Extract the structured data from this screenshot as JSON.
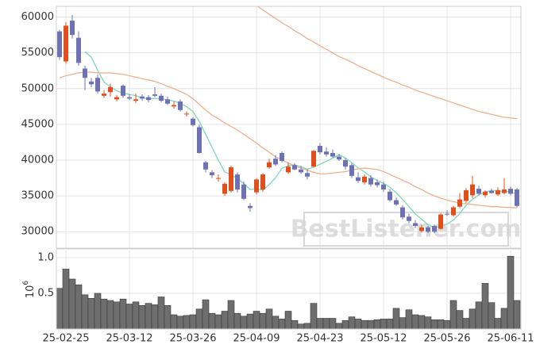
{
  "chart_data": [
    {
      "type": "candlestick",
      "ylim": [
        27700,
        61500
      ],
      "yticks": [
        30000,
        35000,
        40000,
        45000,
        50000,
        55000,
        60000
      ],
      "grid": true,
      "up_color": "#e0501c",
      "down_color": "#6e72b3",
      "watermark": "BestListener.com",
      "open": [
        58000,
        53800,
        59500,
        57100,
        52800,
        51000,
        51500,
        49000,
        49500,
        48500,
        50400,
        48800,
        48300,
        48900,
        48800,
        49200,
        49000,
        48500,
        47500,
        48200,
        46400,
        45800,
        44600,
        39700,
        38300,
        37400,
        35300,
        35700,
        38000,
        36600,
        33600,
        35500,
        35900,
        39000,
        40200,
        41000,
        38300,
        39300,
        38700,
        38200,
        39100,
        42000,
        41200,
        41000,
        40500,
        40000,
        39300,
        37600,
        36900,
        37500,
        36900,
        36600,
        35600,
        34400,
        33400,
        32100,
        31200,
        30100,
        30600,
        30800,
        30400,
        32500,
        32300,
        33500,
        34300,
        35100,
        36000,
        35100,
        35700,
        35200,
        35400,
        36000,
        35900
      ],
      "high": [
        58200,
        59300,
        60300,
        58000,
        53200,
        51500,
        52000,
        49800,
        50700,
        49100,
        50600,
        49200,
        49300,
        49200,
        49100,
        50200,
        49300,
        48900,
        48200,
        48500,
        46800,
        46000,
        45000,
        39900,
        38600,
        38000,
        36900,
        39200,
        38300,
        37000,
        34000,
        37500,
        38200,
        40200,
        40700,
        41200,
        39700,
        39600,
        39200,
        38700,
        41400,
        42400,
        41800,
        41500,
        40900,
        40300,
        39600,
        38300,
        38000,
        37900,
        37300,
        37000,
        35900,
        34800,
        33700,
        32500,
        31600,
        31000,
        30800,
        31000,
        32600,
        33000,
        33600,
        35400,
        36100,
        37800,
        36400,
        35800,
        36000,
        36200,
        37500,
        36300,
        36100
      ],
      "low": [
        54000,
        53500,
        57000,
        53200,
        49800,
        50200,
        49300,
        48700,
        48900,
        48200,
        48700,
        48400,
        48000,
        48300,
        48100,
        48800,
        48100,
        47700,
        47200,
        46800,
        46100,
        44700,
        40900,
        38300,
        37500,
        37000,
        35000,
        35500,
        35500,
        34400,
        32800,
        35200,
        35600,
        38800,
        39200,
        39700,
        38100,
        38600,
        38100,
        37300,
        39000,
        40800,
        40500,
        40300,
        39900,
        38700,
        37500,
        36800,
        36600,
        36300,
        36200,
        35600,
        34200,
        33600,
        31700,
        31200,
        30500,
        29900,
        29800,
        29800,
        30300,
        32200,
        32100,
        33300,
        34000,
        34700,
        35100,
        34800,
        35300,
        35000,
        35200,
        35100,
        33400
      ],
      "close": [
        54400,
        58800,
        57500,
        53600,
        51500,
        50600,
        49600,
        49300,
        50200,
        48800,
        49000,
        48600,
        48500,
        48600,
        48400,
        49000,
        48300,
        47900,
        47700,
        47000,
        46500,
        44900,
        41000,
        38700,
        37900,
        37500,
        36700,
        39000,
        35900,
        34600,
        33300,
        37300,
        38000,
        39700,
        39400,
        39900,
        39100,
        38700,
        38300,
        37700,
        41300,
        41100,
        40800,
        40500,
        40100,
        39100,
        37800,
        37100,
        37700,
        36600,
        36500,
        35900,
        34400,
        33800,
        32000,
        31500,
        30800,
        30600,
        30000,
        30000,
        32400,
        32400,
        33400,
        34500,
        35800,
        36600,
        35300,
        35600,
        35400,
        35800,
        35900,
        35300,
        33600
      ],
      "lines": [
        {
          "color": "#7fd8b8",
          "values": [
            null,
            null,
            null,
            null,
            55160,
            54400,
            52560,
            50920,
            50240,
            49700,
            49380,
            49180,
            49020,
            48700,
            48620,
            48620,
            48560,
            48440,
            48260,
            47980,
            47480,
            46800,
            45420,
            43620,
            41800,
            40000,
            38360,
            37960,
            37400,
            36740,
            35900,
            36020,
            35820,
            36580,
            37540,
            38860,
            39220,
            39360,
            39080,
            38740,
            39020,
            39420,
            39840,
            40280,
            40760,
            40320,
            39660,
            38920,
            38360,
            37660,
            37140,
            36760,
            36220,
            35440,
            34520,
            33520,
            32500,
            31740,
            30980,
            30580,
            30760,
            31080,
            31640,
            32540,
            33700,
            34540,
            35120,
            35560,
            35740,
            35740,
            35600,
            35600,
            35200
          ]
        },
        {
          "color": "#eeb08e",
          "values": [
            51500,
            51800,
            52000,
            52200,
            52300,
            52300,
            52200,
            52200,
            52200,
            52100,
            52000,
            51800,
            51600,
            51400,
            51200,
            51000,
            50700,
            50300,
            50000,
            49600,
            49200,
            48600,
            47800,
            47000,
            46300,
            45800,
            45200,
            44700,
            44200,
            43600,
            43000,
            42400,
            41700,
            41100,
            40500,
            40000,
            39600,
            39200,
            38900,
            38600,
            38300,
            38100,
            38100,
            38200,
            38300,
            38400,
            38600,
            38800,
            38900,
            38800,
            38700,
            38400,
            38000,
            37600,
            37200,
            36800,
            36300,
            35900,
            35400,
            35000,
            34700,
            34400,
            34200,
            34000,
            33900,
            33800,
            33700,
            33600,
            33500,
            33500,
            33400,
            33400,
            33300
          ]
        },
        {
          "color": "#eeb08e",
          "values": [
            null,
            null,
            null,
            null,
            null,
            null,
            null,
            null,
            null,
            null,
            null,
            null,
            null,
            null,
            null,
            null,
            null,
            null,
            null,
            null,
            null,
            null,
            null,
            null,
            null,
            null,
            null,
            null,
            null,
            null,
            62200,
            61600,
            61000,
            60400,
            59800,
            59200,
            58700,
            58100,
            57600,
            57000,
            56500,
            56000,
            55500,
            55000,
            54500,
            54100,
            53700,
            53200,
            52800,
            52400,
            52000,
            51600,
            51200,
            50900,
            50500,
            50200,
            49800,
            49500,
            49200,
            48900,
            48600,
            48300,
            48000,
            47700,
            47400,
            47100,
            46800,
            46600,
            46400,
            46200,
            46000,
            45900,
            45800
          ]
        }
      ]
    },
    {
      "type": "bar",
      "ylabel": "10",
      "ylabel_exponent": "6",
      "ylim": [
        0,
        1.1
      ],
      "yticks": [
        0.5,
        {
          "value": 1,
          "label": "1.0"
        }
      ],
      "grid": true,
      "color": "#6e6e6e",
      "categories": [
        null,
        "25-02-25",
        null,
        null,
        null,
        null,
        null,
        null,
        null,
        null,
        null,
        "25-03-12",
        null,
        null,
        null,
        null,
        null,
        null,
        null,
        null,
        null,
        "25-03-26",
        null,
        null,
        null,
        null,
        null,
        null,
        null,
        null,
        null,
        "25-04-09",
        null,
        null,
        null,
        null,
        null,
        null,
        null,
        null,
        null,
        "25-04-23",
        null,
        null,
        null,
        null,
        null,
        null,
        null,
        null,
        null,
        "25-05-12",
        null,
        null,
        null,
        null,
        null,
        null,
        null,
        null,
        null,
        "25-05-26",
        null,
        null,
        null,
        null,
        null,
        null,
        null,
        null,
        null,
        "25-06-11",
        null
      ],
      "values": [
        0.57,
        0.84,
        0.7,
        0.62,
        0.48,
        0.43,
        0.5,
        0.42,
        0.4,
        0.38,
        0.42,
        0.35,
        0.38,
        0.33,
        0.36,
        0.34,
        0.45,
        0.33,
        0.2,
        0.18,
        0.19,
        0.2,
        0.28,
        0.41,
        0.22,
        0.2,
        0.25,
        0.4,
        0.22,
        0.18,
        0.21,
        0.25,
        0.22,
        0.28,
        0.18,
        0.14,
        0.25,
        0.12,
        0.07,
        0.08,
        0.36,
        0.15,
        0.15,
        0.15,
        0.08,
        0.12,
        0.17,
        0.14,
        0.12,
        0.12,
        0.13,
        0.14,
        0.14,
        0.29,
        0.16,
        0.27,
        0.2,
        0.19,
        0.17,
        0.13,
        0.13,
        0.12,
        0.4,
        0.26,
        0.15,
        0.28,
        0.38,
        0.64,
        0.37,
        0.15,
        0.29,
        1.02,
        0.4
      ]
    }
  ]
}
